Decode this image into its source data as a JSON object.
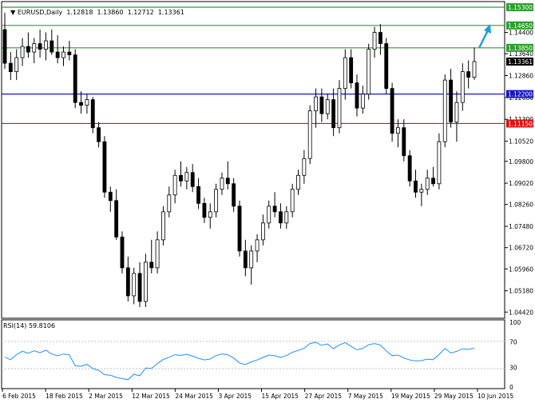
{
  "header": {
    "symbol_label": "EURUSD,Daily",
    "ohlc_label": "1.12818  1.13860  1.12712  1.13361"
  },
  "rsi_panel": {
    "title": "RSI(14) 59.8106",
    "scale": [
      "100",
      "70",
      "30",
      "0"
    ]
  },
  "price_scale": [
    "1.14400",
    "1.13640",
    "1.12860",
    "1.12080",
    "1.11300",
    "1.10520",
    "1.09800",
    "1.09020",
    "1.08260",
    "1.07480",
    "1.06720",
    "1.05960",
    "1.05180",
    "1.04420"
  ],
  "level_lines": [
    {
      "label": "1.15300",
      "price": 1.153,
      "color": "#2ca02c"
    },
    {
      "label": "1.14650",
      "price": 1.1465,
      "color": "#2ca02c"
    },
    {
      "label": "1.13850",
      "price": 1.1385,
      "color": "#2ca02c"
    },
    {
      "label": "1.12200",
      "price": 1.122,
      "color": "#1515c8"
    },
    {
      "label": "1.11150",
      "price": 1.1115,
      "color": "#e01010"
    }
  ],
  "current_price_label": "1.13361",
  "date_axis": [
    "6 Feb 2015",
    "18 Feb 2015",
    "2 Mar 2015",
    "12 Mar 2015",
    "24 Mar 2015",
    "3 Apr 2015",
    "15 Apr 2015",
    "27 Apr 2015",
    "7 May 2015",
    "19 May 2015",
    "29 May 2015",
    "10 Jun 2015"
  ],
  "colors": {
    "bull_candle": "#ffffff",
    "bear_candle": "#000000",
    "rsi_line": "#1e90ff",
    "arrow": "#1e9fd6"
  },
  "chart_data": {
    "type": "candlestick",
    "title": "EURUSD,Daily",
    "ylim": [
      1.042,
      1.155
    ],
    "candles": [
      [
        1.145,
        1.151,
        1.131,
        1.133
      ],
      [
        1.133,
        1.137,
        1.127,
        1.13
      ],
      [
        1.13,
        1.138,
        1.127,
        1.135
      ],
      [
        1.135,
        1.142,
        1.132,
        1.139
      ],
      [
        1.139,
        1.144,
        1.135,
        1.137
      ],
      [
        1.137,
        1.142,
        1.133,
        1.14
      ],
      [
        1.14,
        1.145,
        1.135,
        1.138
      ],
      [
        1.138,
        1.144,
        1.134,
        1.141
      ],
      [
        1.141,
        1.145,
        1.136,
        1.137
      ],
      [
        1.137,
        1.143,
        1.133,
        1.135
      ],
      [
        1.135,
        1.139,
        1.132,
        1.137
      ],
      [
        1.137,
        1.141,
        1.134,
        1.136
      ],
      [
        1.136,
        1.138,
        1.117,
        1.119
      ],
      [
        1.119,
        1.123,
        1.115,
        1.118
      ],
      [
        1.118,
        1.122,
        1.115,
        1.12
      ],
      [
        1.12,
        1.121,
        1.108,
        1.11
      ],
      [
        1.11,
        1.112,
        1.103,
        1.105
      ],
      [
        1.105,
        1.107,
        1.085,
        1.087
      ],
      [
        1.087,
        1.089,
        1.08,
        1.084
      ],
      [
        1.084,
        1.088,
        1.07,
        1.071
      ],
      [
        1.071,
        1.073,
        1.058,
        1.06
      ],
      [
        1.06,
        1.064,
        1.048,
        1.05
      ],
      [
        1.05,
        1.06,
        1.047,
        1.058
      ],
      [
        1.058,
        1.062,
        1.046,
        1.048
      ],
      [
        1.048,
        1.065,
        1.046,
        1.062
      ],
      [
        1.062,
        1.07,
        1.058,
        1.06
      ],
      [
        1.06,
        1.073,
        1.058,
        1.07
      ],
      [
        1.07,
        1.082,
        1.068,
        1.08
      ],
      [
        1.08,
        1.089,
        1.078,
        1.086
      ],
      [
        1.086,
        1.095,
        1.083,
        1.093
      ],
      [
        1.093,
        1.098,
        1.089,
        1.091
      ],
      [
        1.091,
        1.096,
        1.088,
        1.094
      ],
      [
        1.094,
        1.097,
        1.087,
        1.089
      ],
      [
        1.089,
        1.092,
        1.081,
        1.083
      ],
      [
        1.083,
        1.085,
        1.076,
        1.078
      ],
      [
        1.078,
        1.083,
        1.074,
        1.08
      ],
      [
        1.08,
        1.09,
        1.078,
        1.088
      ],
      [
        1.088,
        1.094,
        1.086,
        1.092
      ],
      [
        1.092,
        1.098,
        1.088,
        1.09
      ],
      [
        1.09,
        1.092,
        1.08,
        1.082
      ],
      [
        1.082,
        1.084,
        1.064,
        1.066
      ],
      [
        1.066,
        1.07,
        1.057,
        1.06
      ],
      [
        1.06,
        1.068,
        1.054,
        1.066
      ],
      [
        1.066,
        1.072,
        1.062,
        1.07
      ],
      [
        1.07,
        1.079,
        1.068,
        1.076
      ],
      [
        1.076,
        1.084,
        1.074,
        1.082
      ],
      [
        1.082,
        1.087,
        1.078,
        1.08
      ],
      [
        1.08,
        1.083,
        1.074,
        1.076
      ],
      [
        1.076,
        1.082,
        1.074,
        1.08
      ],
      [
        1.08,
        1.09,
        1.078,
        1.088
      ],
      [
        1.088,
        1.095,
        1.086,
        1.093
      ],
      [
        1.093,
        1.102,
        1.09,
        1.099
      ],
      [
        1.099,
        1.118,
        1.097,
        1.116
      ],
      [
        1.116,
        1.124,
        1.11,
        1.121
      ],
      [
        1.121,
        1.124,
        1.112,
        1.115
      ],
      [
        1.115,
        1.122,
        1.113,
        1.12
      ],
      [
        1.12,
        1.124,
        1.107,
        1.11
      ],
      [
        1.11,
        1.127,
        1.108,
        1.124
      ],
      [
        1.124,
        1.138,
        1.12,
        1.135
      ],
      [
        1.135,
        1.138,
        1.124,
        1.126
      ],
      [
        1.126,
        1.129,
        1.114,
        1.117
      ],
      [
        1.117,
        1.125,
        1.115,
        1.122
      ],
      [
        1.122,
        1.14,
        1.12,
        1.138
      ],
      [
        1.138,
        1.146,
        1.135,
        1.144
      ],
      [
        1.144,
        1.147,
        1.136,
        1.14
      ],
      [
        1.14,
        1.142,
        1.122,
        1.124
      ],
      [
        1.124,
        1.126,
        1.105,
        1.108
      ],
      [
        1.108,
        1.113,
        1.103,
        1.11
      ],
      [
        1.11,
        1.113,
        1.098,
        1.1
      ],
      [
        1.1,
        1.102,
        1.089,
        1.091
      ],
      [
        1.091,
        1.095,
        1.085,
        1.087
      ],
      [
        1.087,
        1.09,
        1.082,
        1.088
      ],
      [
        1.088,
        1.095,
        1.086,
        1.092
      ],
      [
        1.092,
        1.096,
        1.089,
        1.09
      ],
      [
        1.09,
        1.108,
        1.088,
        1.105
      ],
      [
        1.105,
        1.129,
        1.103,
        1.127
      ],
      [
        1.127,
        1.131,
        1.11,
        1.112
      ],
      [
        1.112,
        1.123,
        1.105,
        1.119
      ],
      [
        1.119,
        1.133,
        1.116,
        1.13
      ],
      [
        1.13,
        1.134,
        1.124,
        1.128
      ],
      [
        1.128,
        1.1386,
        1.1271,
        1.1336
      ]
    ]
  }
}
